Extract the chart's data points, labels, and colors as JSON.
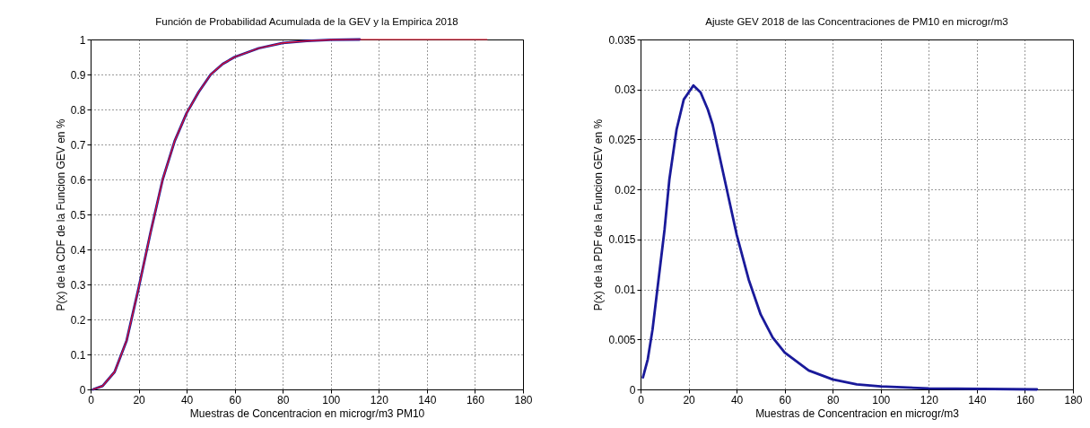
{
  "chart_data": [
    {
      "type": "line",
      "title": "Función de Probabilidad Acumulada de la GEV y la Empirica 2018",
      "xlabel": "Muestras de Concentracion en microgr/m3 PM10",
      "ylabel": "P(x) de la CDF de la Funcion GEV en %",
      "xlim": [
        0,
        180
      ],
      "xticks": [
        0,
        20,
        40,
        60,
        80,
        100,
        120,
        140,
        160,
        180
      ],
      "ylim": [
        0,
        1
      ],
      "yticks": [
        0,
        0.1,
        0.2,
        0.3,
        0.4,
        0.5,
        0.6,
        0.7,
        0.8,
        0.9,
        1
      ],
      "grid": true,
      "line_style": "solid",
      "series": [
        {
          "color": "#1a1a9a",
          "x": [
            1,
            5,
            10,
            15,
            20,
            25,
            30,
            35,
            40,
            45,
            50,
            55,
            60,
            70,
            80,
            90,
            100,
            112
          ],
          "values": [
            0,
            0.01,
            0.05,
            0.14,
            0.29,
            0.45,
            0.6,
            0.71,
            0.79,
            0.85,
            0.9,
            0.93,
            0.95,
            0.975,
            0.99,
            0.996,
            0.999,
            1
          ]
        },
        {
          "color": "#e8102a",
          "x": [
            1,
            5,
            10,
            15,
            20,
            25,
            30,
            35,
            40,
            45,
            50,
            55,
            60,
            70,
            80,
            90,
            100,
            112,
            140,
            165
          ],
          "values": [
            0,
            0.01,
            0.05,
            0.14,
            0.29,
            0.45,
            0.6,
            0.71,
            0.79,
            0.85,
            0.9,
            0.93,
            0.95,
            0.975,
            0.99,
            0.996,
            0.999,
            1,
            1,
            1
          ]
        }
      ]
    },
    {
      "type": "line",
      "title": "Ajuste GEV 2018 de las Concentraciones de PM10 en microgr/m3",
      "xlabel": "Muestras de Concentracion en microgr/m3",
      "ylabel": "P(x) de la PDF de la Funcion GEV en %",
      "xlim": [
        0,
        180
      ],
      "xticks": [
        0,
        20,
        40,
        60,
        80,
        100,
        120,
        140,
        160,
        180
      ],
      "ylim": [
        0,
        0.035
      ],
      "yticks": [
        0,
        0.005,
        0.01,
        0.015,
        0.02,
        0.025,
        0.03,
        0.035
      ],
      "grid": true,
      "line_style": "solid",
      "series": [
        {
          "color": "#1a1a9a",
          "x": [
            1,
            3,
            5,
            8,
            10,
            12,
            15,
            18,
            22,
            25,
            28,
            30,
            35,
            40,
            45,
            50,
            55,
            60,
            70,
            80,
            90,
            100,
            120,
            165
          ],
          "values": [
            0.0012,
            0.003,
            0.006,
            0.012,
            0.016,
            0.021,
            0.026,
            0.029,
            0.0304,
            0.0297,
            0.028,
            0.0265,
            0.021,
            0.0155,
            0.011,
            0.0075,
            0.0052,
            0.0037,
            0.0019,
            0.001,
            0.0005,
            0.0003,
            0.0001,
            0
          ]
        }
      ]
    }
  ]
}
